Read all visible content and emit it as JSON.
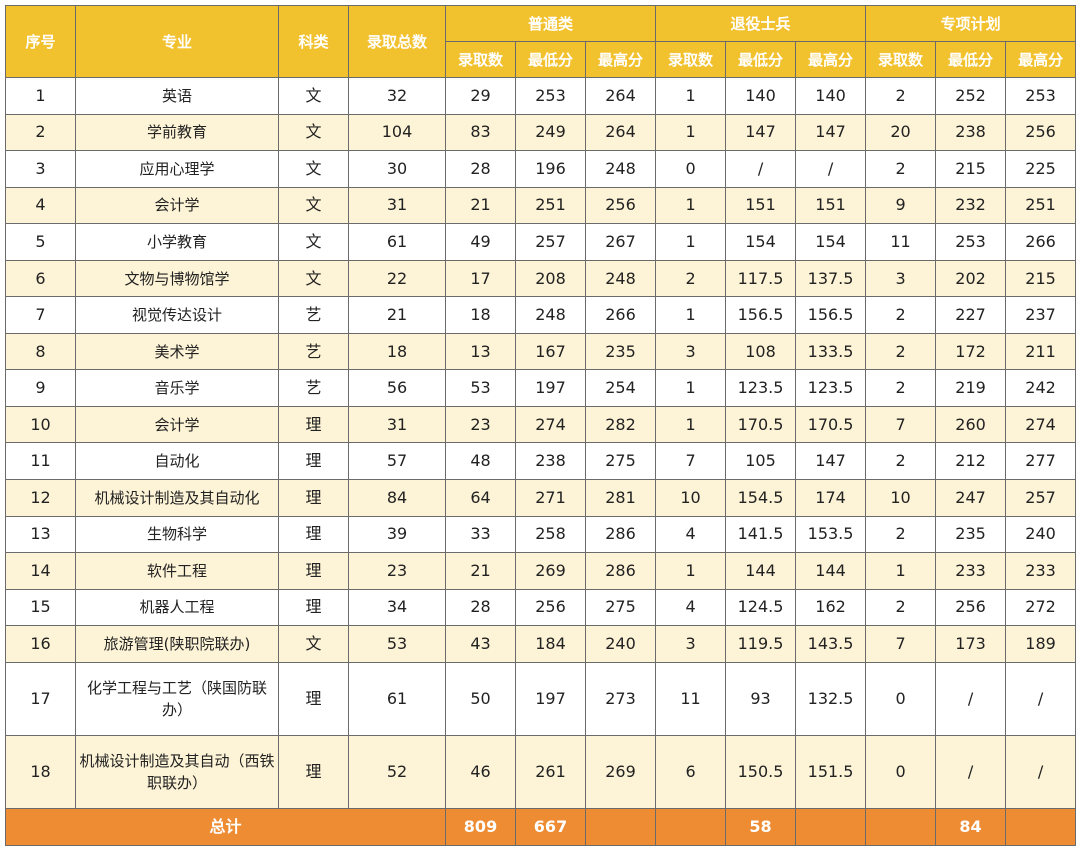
{
  "headers": {
    "seq": "序号",
    "major": "专业",
    "subject": "科类",
    "total": "录取总数",
    "groups": [
      "普通类",
      "退役士兵",
      "专项计划"
    ],
    "sub": [
      "录取数",
      "最低分",
      "最高分"
    ]
  },
  "colors": {
    "header_bg": "#f2c12e",
    "band_bg": "#fdf3d6",
    "footer_bg": "#ee8c34"
  },
  "rows": [
    [
      "1",
      "英语",
      "文",
      "32",
      "29",
      "253",
      "264",
      "1",
      "140",
      "140",
      "2",
      "252",
      "253"
    ],
    [
      "2",
      "学前教育",
      "文",
      "104",
      "83",
      "249",
      "264",
      "1",
      "147",
      "147",
      "20",
      "238",
      "256"
    ],
    [
      "3",
      "应用心理学",
      "文",
      "30",
      "28",
      "196",
      "248",
      "0",
      "/",
      "/",
      "2",
      "215",
      "225"
    ],
    [
      "4",
      "会计学",
      "文",
      "31",
      "21",
      "251",
      "256",
      "1",
      "151",
      "151",
      "9",
      "232",
      "251"
    ],
    [
      "5",
      "小学教育",
      "文",
      "61",
      "49",
      "257",
      "267",
      "1",
      "154",
      "154",
      "11",
      "253",
      "266"
    ],
    [
      "6",
      "文物与博物馆学",
      "文",
      "22",
      "17",
      "208",
      "248",
      "2",
      "117.5",
      "137.5",
      "3",
      "202",
      "215"
    ],
    [
      "7",
      "视觉传达设计",
      "艺",
      "21",
      "18",
      "248",
      "266",
      "1",
      "156.5",
      "156.5",
      "2",
      "227",
      "237"
    ],
    [
      "8",
      "美术学",
      "艺",
      "18",
      "13",
      "167",
      "235",
      "3",
      "108",
      "133.5",
      "2",
      "172",
      "211"
    ],
    [
      "9",
      "音乐学",
      "艺",
      "56",
      "53",
      "197",
      "254",
      "1",
      "123.5",
      "123.5",
      "2",
      "219",
      "242"
    ],
    [
      "10",
      "会计学",
      "理",
      "31",
      "23",
      "274",
      "282",
      "1",
      "170.5",
      "170.5",
      "7",
      "260",
      "274"
    ],
    [
      "11",
      "自动化",
      "理",
      "57",
      "48",
      "238",
      "275",
      "7",
      "105",
      "147",
      "2",
      "212",
      "277"
    ],
    [
      "12",
      "机械设计制造及其自动化",
      "理",
      "84",
      "64",
      "271",
      "281",
      "10",
      "154.5",
      "174",
      "10",
      "247",
      "257"
    ],
    [
      "13",
      "生物科学",
      "理",
      "39",
      "33",
      "258",
      "286",
      "4",
      "141.5",
      "153.5",
      "2",
      "235",
      "240"
    ],
    [
      "14",
      "软件工程",
      "理",
      "23",
      "21",
      "269",
      "286",
      "1",
      "144",
      "144",
      "1",
      "233",
      "233"
    ],
    [
      "15",
      "机器人工程",
      "理",
      "34",
      "28",
      "256",
      "275",
      "4",
      "124.5",
      "162",
      "2",
      "256",
      "272"
    ],
    [
      "16",
      "旅游管理(陕职院联办)",
      "文",
      "53",
      "43",
      "184",
      "240",
      "3",
      "119.5",
      "143.5",
      "7",
      "173",
      "189"
    ],
    [
      "17",
      "化学工程与工艺（陕国防联办）",
      "理",
      "61",
      "50",
      "197",
      "273",
      "11",
      "93",
      "132.5",
      "0",
      "/",
      "/"
    ],
    [
      "18",
      "机械设计制造及其自动（西铁职联办）",
      "理",
      "52",
      "46",
      "261",
      "269",
      "6",
      "150.5",
      "151.5",
      "0",
      "/",
      "/"
    ]
  ],
  "footer": {
    "label": "总计",
    "total": "809",
    "regular": "667",
    "veterans": "58",
    "special": "84"
  }
}
